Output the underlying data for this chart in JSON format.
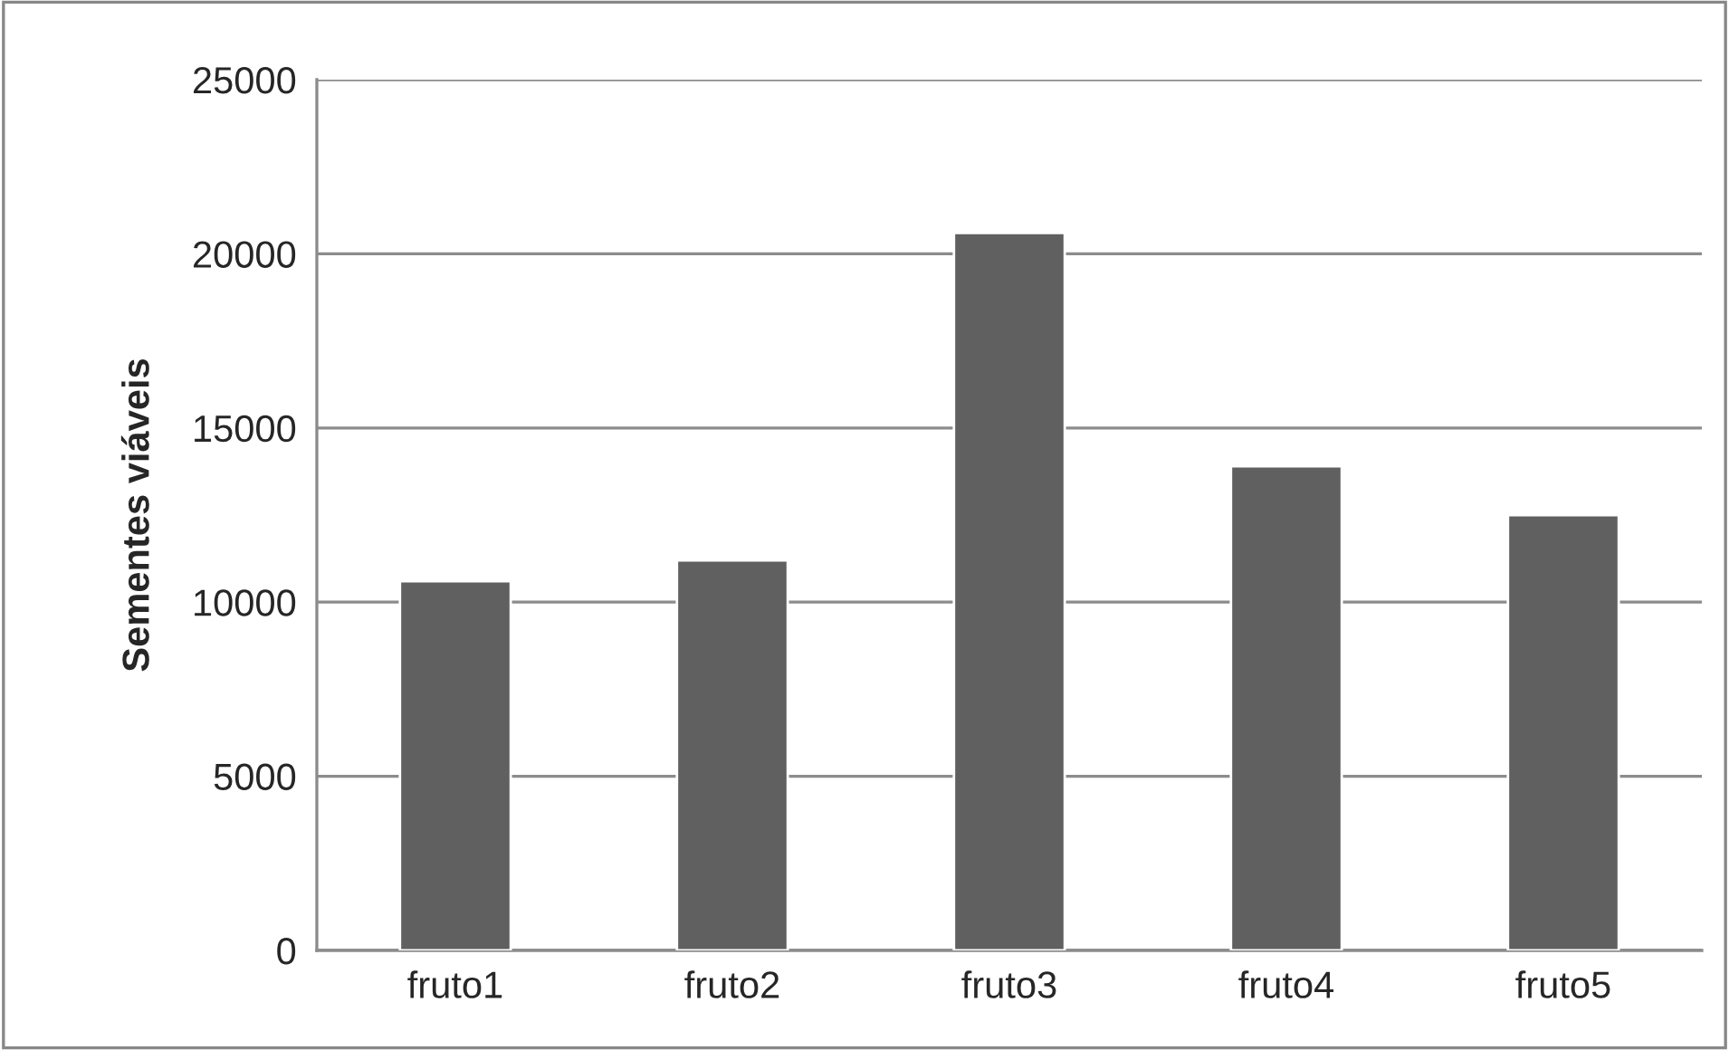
{
  "chart_data": {
    "type": "bar",
    "ylabel": "Sementes viáveis",
    "categories": [
      "fruto1",
      "fruto2",
      "fruto3",
      "fruto4",
      "fruto5"
    ],
    "values": [
      10600,
      11200,
      20600,
      13900,
      12500
    ],
    "color": "#606060",
    "ylim": [
      0,
      25000
    ],
    "yticks": [
      0,
      5000,
      10000,
      15000,
      20000,
      25000
    ],
    "grid": "y",
    "legend": false
  }
}
